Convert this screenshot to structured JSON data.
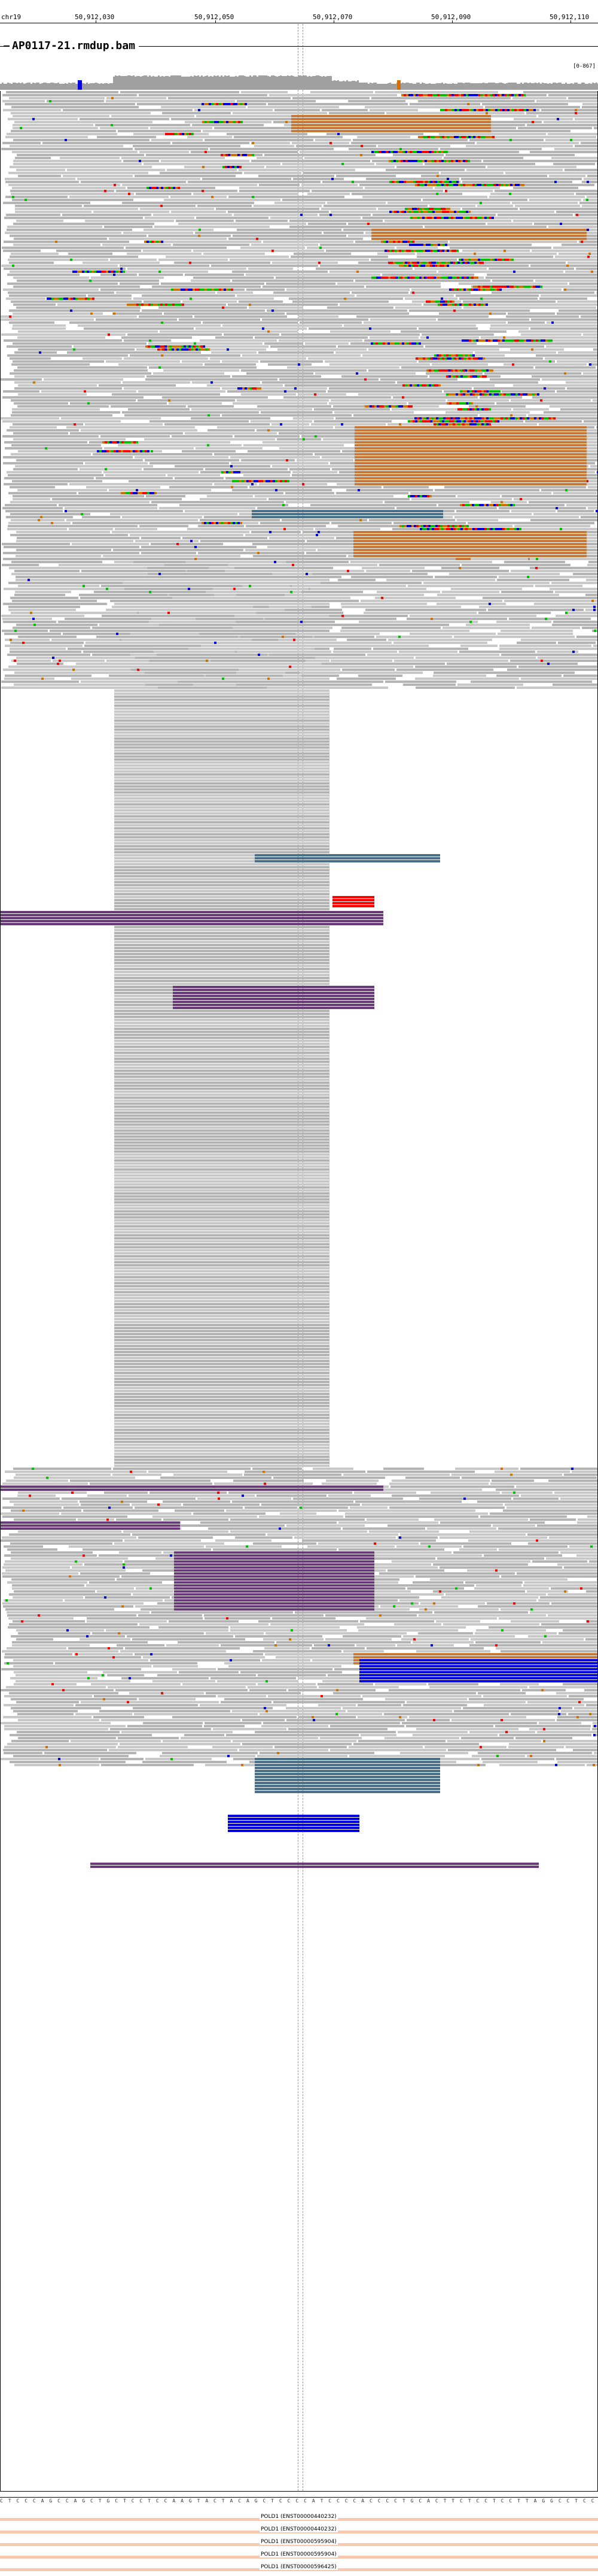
{
  "ruler": {
    "chrom": "chr19",
    "ticks": [
      "50,912,030",
      "50,912,050",
      "50,912,070",
      "50,912,090",
      "50,912,110"
    ]
  },
  "track": {
    "title": "AP0117-21.rmdup.bam",
    "range": "[0-867]"
  },
  "sequence": "C T C C C A G C C A G C T G C T C C T C C A A G T A C T A C A G C T C C C C A T C C C C A C C C C T G C A C T T C T C C T C C T T A G G C C T C C G A T C G A T C A C C C A C A A C C T C",
  "genes": [
    {
      "label": "POLD1 (ENST00000440232)"
    },
    {
      "label": "POLD1 (ENST00000440232)"
    },
    {
      "label": "POLD1 (ENST00000595904)"
    },
    {
      "label": "POLD1 (ENST00000595904)"
    },
    {
      "label": "POLD1 (ENST00000596425)"
    }
  ],
  "colors": {
    "read": "#c8c8c8",
    "read_alt": "#b4b4b4",
    "mismatch_A": "#00c000",
    "mismatch_C": "#0000e0",
    "mismatch_G": "#d17105",
    "mismatch_T": "#ff0000",
    "insertion": "#8a2be2",
    "brown": "#c87838",
    "steel": "#4a6f8a",
    "purple": "#6a3a7a",
    "gene": "#f7c9b0"
  }
}
